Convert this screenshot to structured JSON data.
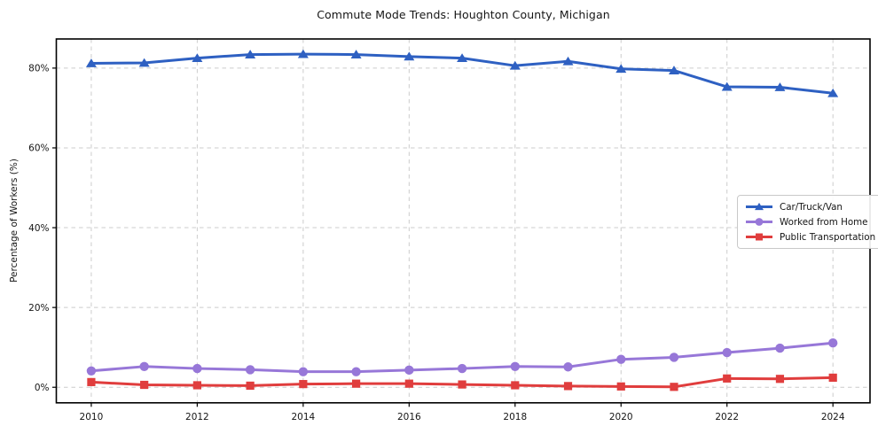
{
  "chart_data": {
    "type": "line",
    "title": "Commute Mode Trends: Houghton County, Michigan",
    "xlabel": "",
    "ylabel": "Percentage of Workers (%)",
    "x": [
      2010,
      2011,
      2012,
      2013,
      2014,
      2015,
      2016,
      2017,
      2018,
      2019,
      2020,
      2021,
      2022,
      2023,
      2024
    ],
    "series": [
      {
        "name": "Car/Truck/Van",
        "color": "#2e60c2",
        "marker": "triangle",
        "values": [
          81.2,
          81.3,
          82.5,
          83.4,
          83.5,
          83.4,
          82.9,
          82.5,
          80.6,
          81.7,
          79.8,
          79.4,
          75.3,
          75.2,
          73.7
        ]
      },
      {
        "name": "Worked from Home",
        "color": "#9777d8",
        "marker": "circle",
        "values": [
          4.1,
          5.2,
          4.7,
          4.4,
          3.9,
          3.9,
          4.3,
          4.7,
          5.2,
          5.1,
          7.0,
          7.5,
          8.7,
          9.8,
          11.1
        ]
      },
      {
        "name": "Public Transportation",
        "color": "#e03d3d",
        "marker": "square",
        "values": [
          1.3,
          0.6,
          0.5,
          0.4,
          0.8,
          0.9,
          0.9,
          0.7,
          0.5,
          0.3,
          0.2,
          0.1,
          2.2,
          2.1,
          2.4
        ]
      }
    ],
    "xtick_labels": [
      "2010",
      "2012",
      "2014",
      "2016",
      "2018",
      "2020",
      "2022",
      "2024"
    ],
    "xtick_values": [
      2010,
      2012,
      2014,
      2016,
      2018,
      2020,
      2022,
      2024
    ],
    "ytick_labels": [
      "0%",
      "20%",
      "40%",
      "60%",
      "80%"
    ],
    "ytick_values": [
      0,
      20,
      40,
      60,
      80
    ],
    "xlim": [
      2009.34,
      2024.7
    ],
    "ylim": [
      -3.9,
      87.3
    ],
    "grid": "dashed, both axes",
    "legend_position": "center-right",
    "grid_color": "#cccccc",
    "spine_color": "#000000",
    "text_color": "#151515",
    "background_color": "#ffffff"
  }
}
